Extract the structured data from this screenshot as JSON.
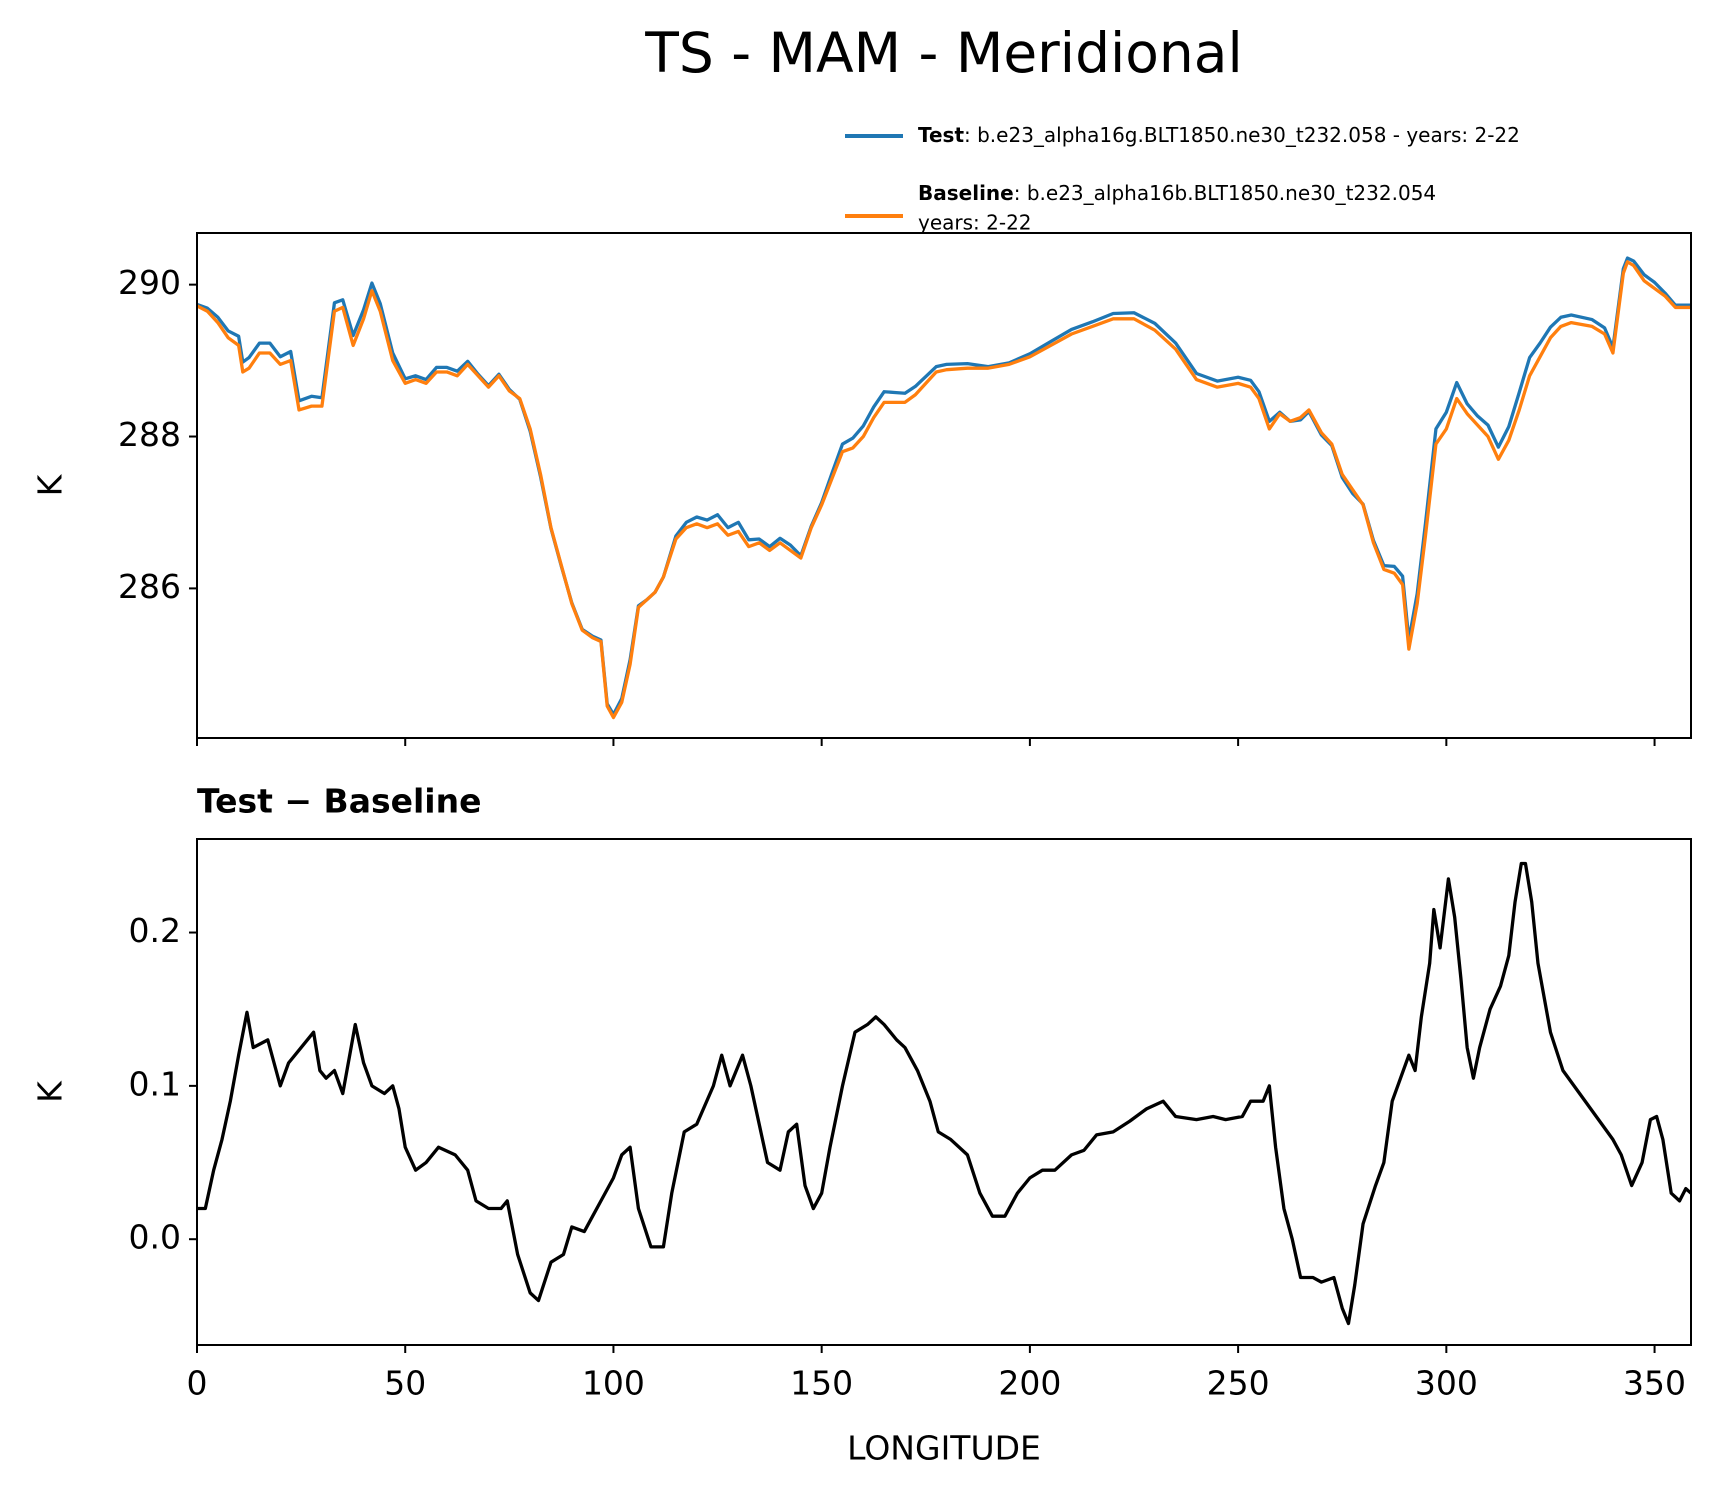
{
  "title": "TS - MAM - Meridional",
  "chart_data": [
    {
      "type": "line",
      "ylabel": "K",
      "sharex": true,
      "x": [
        0,
        2.5,
        5,
        7.5,
        10,
        11,
        12.5,
        15,
        17.5,
        20,
        22.5,
        24.5,
        27.5,
        30,
        33,
        35,
        37.5,
        40,
        42,
        44,
        47,
        50,
        52.5,
        55,
        57.5,
        60,
        62.5,
        65,
        67.5,
        70,
        72.5,
        75,
        77.5,
        80,
        82.5,
        85,
        87.5,
        90,
        92.5,
        95,
        97,
        98.5,
        100,
        102,
        104,
        106,
        108,
        110,
        112,
        115,
        117.5,
        120,
        122.5,
        125,
        127.5,
        130,
        132.5,
        135,
        137.5,
        140,
        142.5,
        145,
        147.5,
        150,
        152.5,
        155,
        157.5,
        160,
        162.5,
        165,
        167.5,
        170,
        172.5,
        175,
        177.5,
        180,
        185,
        190,
        195,
        200,
        205,
        210,
        215,
        220,
        225,
        230,
        235,
        240,
        245,
        250,
        253,
        255,
        257.5,
        260,
        262.5,
        265,
        267,
        270,
        272.5,
        275,
        277.5,
        280,
        282.5,
        285,
        287.5,
        289.5,
        291,
        293,
        295,
        297.5,
        300,
        302.5,
        305,
        307.5,
        310,
        312.5,
        315,
        317.5,
        320,
        322.5,
        325,
        327.5,
        330,
        335,
        338,
        340,
        342.5,
        343.5,
        345,
        347.5,
        350,
        352.5,
        355,
        358.75
      ],
      "series": [
        {
          "name": "Test",
          "description": [
            ": b.e23_alpha16g.BLT1850.ne30_t232.058 - years: 2-22"
          ],
          "color": "#1f77b4",
          "values": [
            289.74,
            289.69,
            289.57,
            289.39,
            289.32,
            288.98,
            289.04,
            289.23,
            289.23,
            289.05,
            289.12,
            288.47,
            288.53,
            288.51,
            289.76,
            289.8,
            289.33,
            289.67,
            290.02,
            289.75,
            289.1,
            288.76,
            288.8,
            288.75,
            288.91,
            288.91,
            288.86,
            288.99,
            288.82,
            288.67,
            288.82,
            288.62,
            288.49,
            288.07,
            287.47,
            286.79,
            286.29,
            285.81,
            285.46,
            285.37,
            285.32,
            284.48,
            284.34,
            284.55,
            285.06,
            285.77,
            285.85,
            285.95,
            286.15,
            286.69,
            286.87,
            286.94,
            286.9,
            286.97,
            286.8,
            286.87,
            286.64,
            286.65,
            286.55,
            286.66,
            286.57,
            286.43,
            286.82,
            287.13,
            287.52,
            287.9,
            287.98,
            288.14,
            288.39,
            288.59,
            288.58,
            288.57,
            288.66,
            288.79,
            288.92,
            288.95,
            288.96,
            288.92,
            288.97,
            289.09,
            289.25,
            289.41,
            289.51,
            289.62,
            289.63,
            289.49,
            289.23,
            288.83,
            288.73,
            288.78,
            288.74,
            288.59,
            288.2,
            288.32,
            288.2,
            288.22,
            288.33,
            288.02,
            287.88,
            287.46,
            287.25,
            287.11,
            286.63,
            286.3,
            286.29,
            286.16,
            285.32,
            285.93,
            286.86,
            288.1,
            288.32,
            288.71,
            288.43,
            288.27,
            288.15,
            287.86,
            288.13,
            288.58,
            289.04,
            289.23,
            289.44,
            289.57,
            289.6,
            289.54,
            289.43,
            289.17,
            290.21,
            290.35,
            290.31,
            290.13,
            290.03,
            289.89,
            289.73,
            289.73
          ]
        },
        {
          "name": "Baseline",
          "description": [
            ": b.e23_alpha16b.BLT1850.ne30_t232.054",
            "years: 2-22"
          ],
          "color": "#ff7f0e",
          "values": [
            289.72,
            289.65,
            289.5,
            289.3,
            289.2,
            288.85,
            288.9,
            289.1,
            289.1,
            288.95,
            289.0,
            288.35,
            288.4,
            288.4,
            289.65,
            289.7,
            289.2,
            289.55,
            289.92,
            289.65,
            289.0,
            288.7,
            288.75,
            288.7,
            288.85,
            288.85,
            288.8,
            288.95,
            288.8,
            288.65,
            288.8,
            288.6,
            288.5,
            288.1,
            287.5,
            286.8,
            286.3,
            285.8,
            285.45,
            285.35,
            285.3,
            284.45,
            284.3,
            284.5,
            285.0,
            285.75,
            285.85,
            285.95,
            286.15,
            286.65,
            286.8,
            286.85,
            286.8,
            286.85,
            286.7,
            286.75,
            286.55,
            286.6,
            286.5,
            286.6,
            286.5,
            286.4,
            286.8,
            287.1,
            287.45,
            287.8,
            287.85,
            288.0,
            288.25,
            288.45,
            288.45,
            288.45,
            288.55,
            288.7,
            288.85,
            288.88,
            288.9,
            288.9,
            288.95,
            289.05,
            289.2,
            289.35,
            289.45,
            289.55,
            289.55,
            289.4,
            289.15,
            288.75,
            288.65,
            288.7,
            288.65,
            288.5,
            288.1,
            288.3,
            288.2,
            288.25,
            288.35,
            288.05,
            287.9,
            287.5,
            287.3,
            287.1,
            286.6,
            286.25,
            286.2,
            286.05,
            285.2,
            285.8,
            286.7,
            287.9,
            288.1,
            288.5,
            288.3,
            288.15,
            288.0,
            287.7,
            287.95,
            288.35,
            288.8,
            289.05,
            289.3,
            289.45,
            289.5,
            289.45,
            289.35,
            289.1,
            290.15,
            290.3,
            290.25,
            290.05,
            289.95,
            289.85,
            289.7,
            289.7
          ]
        }
      ],
      "xlim": [
        0,
        358.75
      ],
      "ylim": [
        284.03,
        290.68
      ],
      "yticks": [
        286,
        288,
        290
      ]
    },
    {
      "type": "line",
      "title": "Test − Baseline",
      "ylabel": "K",
      "xlabel": "LONGITUDE",
      "color": "#000000",
      "x": [
        0,
        2,
        4,
        6,
        8,
        10,
        12,
        13.5,
        17,
        20,
        22,
        25,
        28,
        29.5,
        31,
        33,
        35,
        38,
        40,
        42,
        45,
        47,
        48.5,
        50,
        52.5,
        55,
        58,
        62,
        65,
        67,
        70,
        73,
        74.5,
        77,
        80,
        82,
        85,
        88,
        90,
        93,
        95,
        97,
        100,
        102,
        104,
        106,
        109,
        112,
        114,
        117,
        120,
        124,
        126,
        128,
        131,
        133,
        137,
        140,
        142,
        144,
        146,
        148,
        150,
        152,
        155,
        158,
        161,
        163,
        165,
        168,
        170,
        173,
        176,
        178,
        181,
        185,
        188,
        191,
        194,
        197,
        200,
        203,
        206,
        210,
        213,
        216,
        220,
        224,
        228,
        232,
        235,
        240,
        244,
        247,
        251,
        253,
        256,
        257.5,
        259,
        261,
        263,
        265,
        268,
        270,
        273,
        275,
        276.5,
        278,
        280,
        283,
        285,
        287,
        289,
        291,
        292.5,
        294,
        296,
        297,
        298.5,
        300.5,
        302,
        303.5,
        305,
        306.5,
        308,
        310.5,
        313,
        315,
        316.5,
        318,
        319,
        320.5,
        322,
        325,
        328,
        332,
        336,
        340,
        342,
        344.5,
        347,
        349,
        350.5,
        352,
        354,
        356,
        357.5,
        358.75
      ],
      "values": [
        0.02,
        0.02,
        0.045,
        0.065,
        0.09,
        0.12,
        0.148,
        0.125,
        0.13,
        0.1,
        0.115,
        0.125,
        0.135,
        0.11,
        0.105,
        0.11,
        0.095,
        0.14,
        0.115,
        0.1,
        0.095,
        0.1,
        0.085,
        0.06,
        0.045,
        0.05,
        0.06,
        0.055,
        0.045,
        0.025,
        0.02,
        0.02,
        0.025,
        -0.01,
        -0.035,
        -0.04,
        -0.015,
        -0.01,
        0.008,
        0.005,
        0.015,
        0.025,
        0.04,
        0.055,
        0.06,
        0.02,
        -0.005,
        -0.005,
        0.03,
        0.07,
        0.075,
        0.1,
        0.12,
        0.1,
        0.12,
        0.1,
        0.05,
        0.045,
        0.07,
        0.075,
        0.035,
        0.02,
        0.03,
        0.06,
        0.1,
        0.135,
        0.14,
        0.145,
        0.14,
        0.13,
        0.125,
        0.11,
        0.09,
        0.07,
        0.065,
        0.055,
        0.03,
        0.015,
        0.015,
        0.03,
        0.04,
        0.045,
        0.045,
        0.055,
        0.058,
        0.068,
        0.07,
        0.077,
        0.085,
        0.09,
        0.08,
        0.078,
        0.08,
        0.078,
        0.08,
        0.09,
        0.09,
        0.1,
        0.06,
        0.02,
        0,
        -0.025,
        -0.025,
        -0.028,
        -0.025,
        -0.045,
        -0.055,
        -0.03,
        0.01,
        0.035,
        0.05,
        0.09,
        0.105,
        0.12,
        0.11,
        0.145,
        0.18,
        0.215,
        0.19,
        0.235,
        0.21,
        0.17,
        0.125,
        0.105,
        0.125,
        0.15,
        0.165,
        0.185,
        0.22,
        0.245,
        0.245,
        0.22,
        0.18,
        0.135,
        0.11,
        0.095,
        0.08,
        0.065,
        0.055,
        0.035,
        0.05,
        0.078,
        0.08,
        0.065,
        0.03,
        0.025,
        0.033,
        0.03
      ],
      "xlim": [
        0,
        358.75
      ],
      "ylim": [
        -0.069,
        0.261
      ],
      "xticks": [
        0,
        50,
        100,
        150,
        200,
        250,
        300,
        350
      ],
      "yticks": [
        {
          "value": 0,
          "label": "0.0"
        },
        0.1,
        0.2
      ]
    }
  ]
}
